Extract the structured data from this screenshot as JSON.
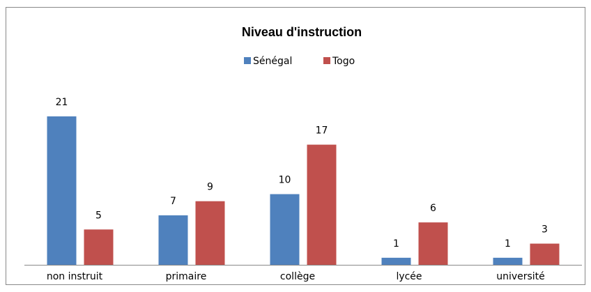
{
  "chart_data": {
    "type": "bar",
    "title": "Niveau d'instruction",
    "categories": [
      "non instruit",
      "primaire",
      "collège",
      "lycée",
      "université"
    ],
    "series": [
      {
        "name": "Sénégal",
        "color": "#4f81bd",
        "values": [
          21,
          7,
          10,
          1,
          1
        ]
      },
      {
        "name": "Togo",
        "color": "#c0504d",
        "values": [
          5,
          9,
          17,
          6,
          3
        ]
      }
    ],
    "legend": "top",
    "grid": false
  }
}
